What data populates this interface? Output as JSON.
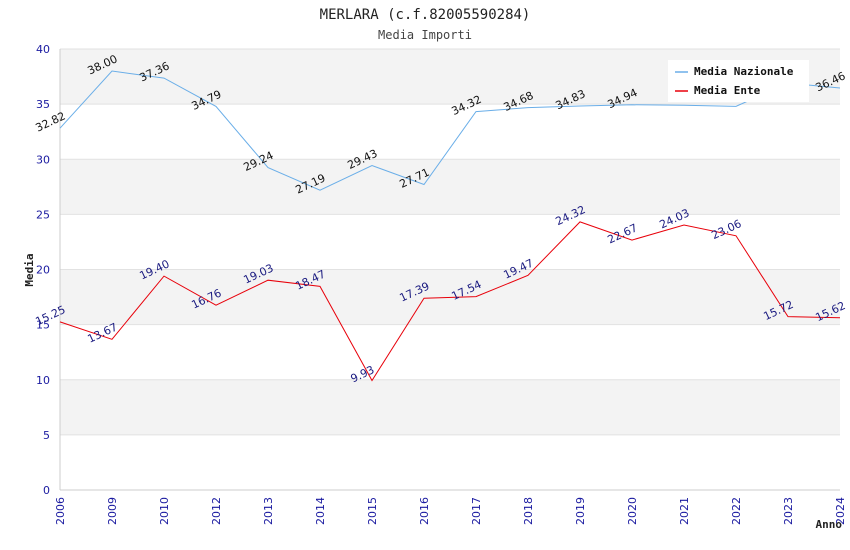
{
  "chart_data": {
    "type": "line",
    "title": "MERLARA (c.f.82005590284)",
    "subtitle": "Media Importi",
    "xlabel": "Anno",
    "ylabel": "Media",
    "ylim": [
      0,
      40
    ],
    "yticks": [
      0,
      5,
      10,
      15,
      20,
      25,
      30,
      35,
      40
    ],
    "categories": [
      "2006",
      "2009",
      "2010",
      "2012",
      "2013",
      "2014",
      "2015",
      "2016",
      "2017",
      "2018",
      "2019",
      "2020",
      "2021",
      "2022",
      "2023",
      "2024"
    ],
    "series": [
      {
        "name": "Media Nazionale",
        "color": "#6aaee8",
        "values": [
          32.82,
          38.0,
          37.36,
          34.79,
          29.24,
          27.19,
          29.43,
          27.71,
          34.32,
          34.68,
          34.83,
          34.94,
          34.9,
          34.8,
          36.9,
          36.46
        ],
        "labels": [
          "32.82",
          "38.00",
          "37.36",
          "34.79",
          "29.24",
          "27.19",
          "29.43",
          "27.71",
          "34.32",
          "34.68",
          "34.83",
          "34.94",
          "",
          "",
          "",
          "36.46"
        ]
      },
      {
        "name": "Media Ente",
        "color": "#e8000a",
        "values": [
          15.25,
          13.67,
          19.4,
          16.76,
          19.03,
          18.47,
          9.93,
          17.39,
          17.54,
          19.47,
          24.32,
          22.67,
          24.03,
          23.06,
          15.72,
          15.62
        ],
        "labels": [
          "15.25",
          "13.67",
          "19.40",
          "16.76",
          "19.03",
          "18.47",
          "9.93",
          "17.39",
          "17.54",
          "19.47",
          "24.32",
          "22.67",
          "24.03",
          "23.06",
          "15.72",
          "15.62"
        ]
      }
    ],
    "legend_position": "top-right",
    "grid": true
  }
}
